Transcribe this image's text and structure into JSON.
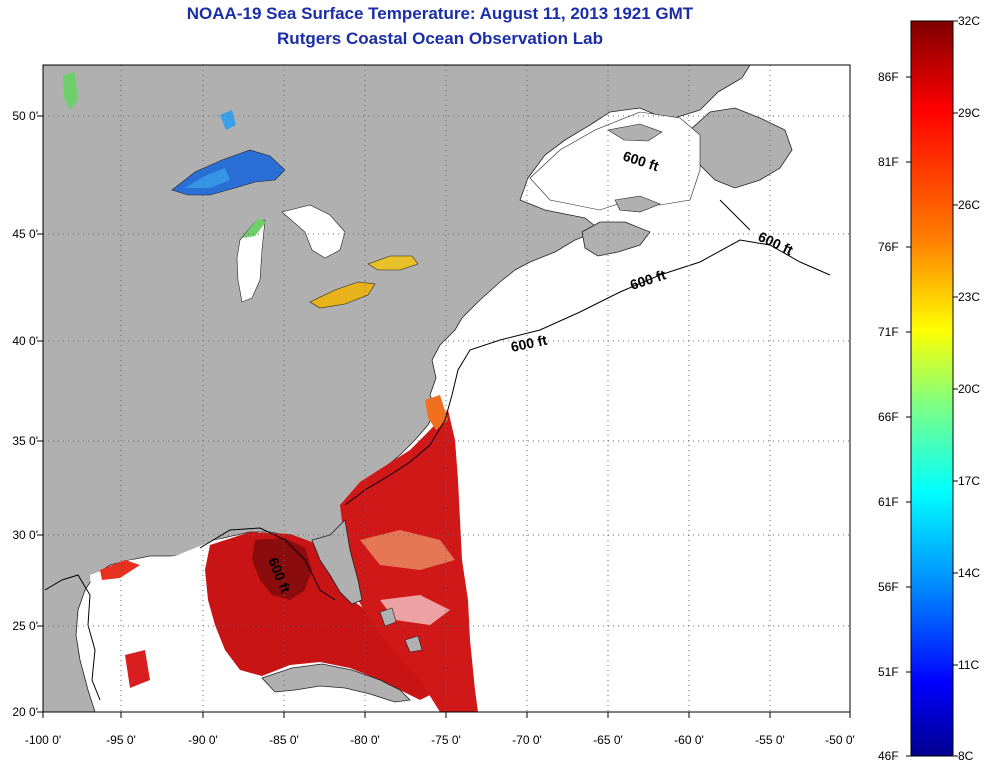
{
  "header": {
    "title": "NOAA-19 Sea Surface Temperature:  August 11, 2013 1921 GMT",
    "subtitle": "Rutgers Coastal Ocean Observation Lab"
  },
  "map": {
    "lon_range": [
      -100,
      -50
    ],
    "lat_range": [
      20,
      52
    ],
    "x_ticks": [
      "-100 0'",
      "-95 0'",
      "-90 0'",
      "-85 0'",
      "-80 0'",
      "-75 0'",
      "-70 0'",
      "-65 0'",
      "-60 0'",
      "-55 0'",
      "-50 0'"
    ],
    "y_ticks": [
      "20 0'",
      "25 0'",
      "30 0'",
      "35 0'",
      "40 0'",
      "45 0'",
      "50 0'"
    ],
    "contour_labels": [
      "600 ft",
      "600 ft",
      "600 ft",
      "600 ft",
      "600 ft"
    ],
    "colors": {
      "land": "#b0b0b0",
      "ocean_no_data": "#ffffff",
      "grid": "#555555"
    }
  },
  "colorbar": {
    "celsius_labels": [
      "32C",
      "29C",
      "26C",
      "23C",
      "20C",
      "17C",
      "14C",
      "11C",
      "8C"
    ],
    "fahrenheit_labels": [
      "86F",
      "81F",
      "76F",
      "71F",
      "66F",
      "61F",
      "56F",
      "51F",
      "46F"
    ],
    "range_c": [
      8,
      32
    ],
    "colormap": [
      "#7f0000",
      "#ff0000",
      "#ff8000",
      "#ffff00",
      "#80ff80",
      "#00ffff",
      "#0080ff",
      "#0000ff",
      "#00008f"
    ]
  }
}
